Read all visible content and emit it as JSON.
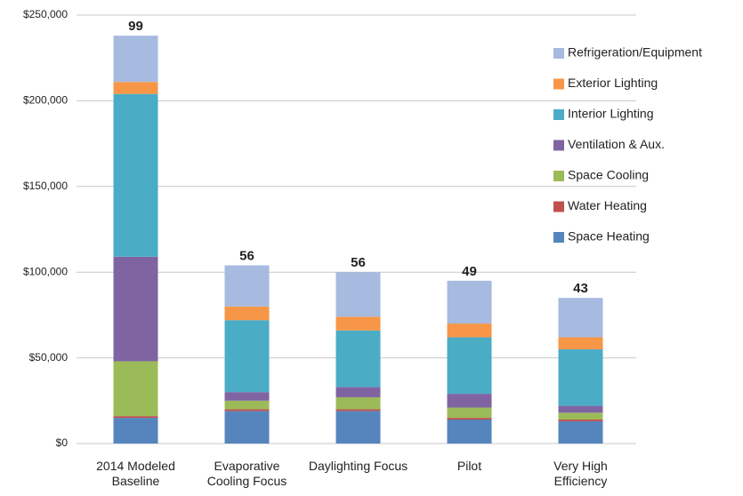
{
  "chart_data": {
    "type": "stacked_bar",
    "categories": [
      "2014 Modeled Baseline",
      "Evaporative Cooling Focus",
      "Daylighting Focus",
      "Pilot",
      "Very High Efficiency"
    ],
    "series": [
      {
        "name": "Space Heating",
        "color": "#5685bd",
        "values": [
          15000,
          19000,
          19000,
          14000,
          13000
        ]
      },
      {
        "name": "Water Heating",
        "color": "#c0504d",
        "values": [
          1000,
          1000,
          1000,
          1000,
          1000
        ]
      },
      {
        "name": "Space Cooling",
        "color": "#9bbb59",
        "values": [
          32000,
          5000,
          7000,
          6000,
          4000
        ]
      },
      {
        "name": "Ventilation & Aux.",
        "color": "#8064a2",
        "values": [
          61000,
          5000,
          6000,
          8000,
          4000
        ]
      },
      {
        "name": "Interior Lighting",
        "color": "#4bacc6",
        "values": [
          95000,
          42000,
          33000,
          33000,
          33000
        ]
      },
      {
        "name": "Exterior Lighting",
        "color": "#f79646",
        "values": [
          7000,
          8000,
          8000,
          8000,
          7000
        ]
      },
      {
        "name": "Refrigeration/Equipment",
        "color": "#a7badf",
        "values": [
          27000,
          24000,
          26000,
          25000,
          23000
        ]
      }
    ],
    "bar_annotations": [
      99,
      56,
      56,
      49,
      43
    ],
    "ylim": [
      0,
      250000
    ],
    "yticks": [
      {
        "value": 0,
        "label": "$0"
      },
      {
        "value": 50000,
        "label": "$50,000"
      },
      {
        "value": 100000,
        "label": "$100,000"
      },
      {
        "value": 150000,
        "label": "$150,000"
      },
      {
        "value": 200000,
        "label": "$200,000"
      },
      {
        "value": 250000,
        "label": "$250,000"
      }
    ],
    "grid": true,
    "legend": "right"
  }
}
